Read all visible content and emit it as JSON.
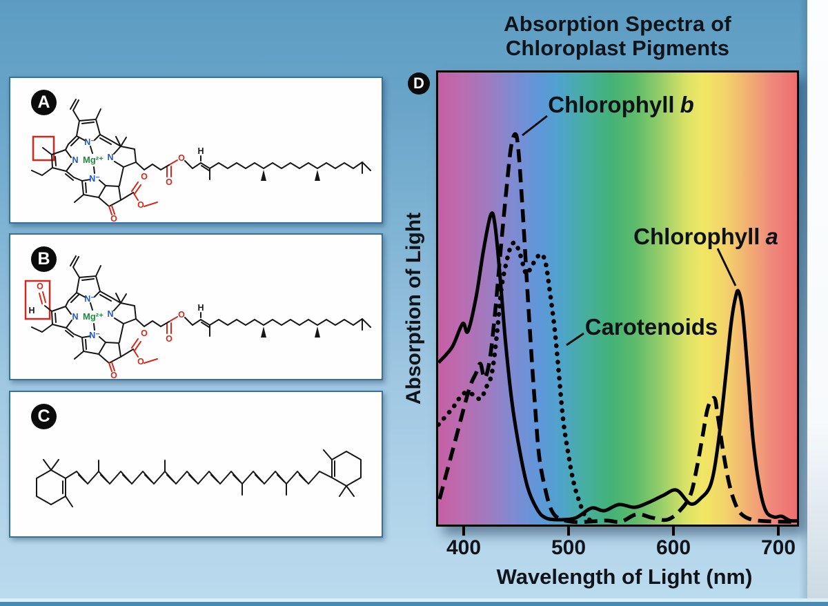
{
  "header": {
    "title_line1": "Absorption Spectra of",
    "title_line2": "Chloroplast Pigments"
  },
  "panels": {
    "a_badge": "A",
    "b_badge": "B",
    "c_badge": "C",
    "d_badge": "D"
  },
  "molecule": {
    "mg": "Mg²⁺",
    "n": "N",
    "n_minus": "N⁻",
    "o": "O",
    "h": "H"
  },
  "chart_data": {
    "type": "line",
    "title": "Absorption Spectra of Chloroplast Pigments",
    "xlabel": "Wavelength of Light (nm)",
    "ylabel": "Absorption of Light",
    "x_ticks": [
      400,
      500,
      600,
      700
    ],
    "xlim": [
      376,
      718
    ],
    "ylim": [
      0,
      1
    ],
    "grid": false,
    "legend_position": "inline-annotations",
    "background": "visible light spectrum gradient",
    "spectrum_stops": [
      [
        0,
        "#C65FA5"
      ],
      [
        7,
        "#B96DB0"
      ],
      [
        14,
        "#9F7BC0"
      ],
      [
        21,
        "#7F8BD2"
      ],
      [
        28,
        "#5F97DA"
      ],
      [
        34,
        "#4FA3CB"
      ],
      [
        41,
        "#46AFA0"
      ],
      [
        48,
        "#43B277"
      ],
      [
        55,
        "#5DBB6B"
      ],
      [
        62,
        "#96CD69"
      ],
      [
        69,
        "#D9E366"
      ],
      [
        74,
        "#F1E664"
      ],
      [
        80,
        "#F3D36A"
      ],
      [
        87,
        "#F2AC74"
      ],
      [
        93,
        "#F0887C"
      ],
      [
        100,
        "#ED6E70"
      ]
    ],
    "series": [
      {
        "name": "Chlorophyll a",
        "label": "Chlorophyll",
        "label_italic": "a",
        "style": "solid",
        "color": "#000000",
        "points": [
          [
            376,
            0.41
          ],
          [
            389,
            0.45
          ],
          [
            399,
            0.51
          ],
          [
            404,
            0.49
          ],
          [
            412,
            0.58
          ],
          [
            419,
            0.7
          ],
          [
            426,
            0.79
          ],
          [
            430,
            0.76
          ],
          [
            435,
            0.62
          ],
          [
            440,
            0.46
          ],
          [
            446,
            0.31
          ],
          [
            453,
            0.19
          ],
          [
            461,
            0.09
          ],
          [
            470,
            0.034
          ],
          [
            478,
            0.012
          ],
          [
            491,
            0.007
          ],
          [
            507,
            0.012
          ],
          [
            522,
            0.037
          ],
          [
            534,
            0.03
          ],
          [
            548,
            0.046
          ],
          [
            563,
            0.039
          ],
          [
            576,
            0.051
          ],
          [
            590,
            0.069
          ],
          [
            603,
            0.083
          ],
          [
            616,
            0.048
          ],
          [
            626,
            0.062
          ],
          [
            636,
            0.101
          ],
          [
            643,
            0.21
          ],
          [
            650,
            0.38
          ],
          [
            655,
            0.51
          ],
          [
            659,
            0.575
          ],
          [
            662,
            0.593
          ],
          [
            666,
            0.54
          ],
          [
            671,
            0.38
          ],
          [
            676,
            0.21
          ],
          [
            682,
            0.092
          ],
          [
            688,
            0.03
          ],
          [
            696,
            0.014
          ],
          [
            703,
            0.016
          ],
          [
            711,
            0.005
          ],
          [
            718,
            0.004
          ]
        ]
      },
      {
        "name": "Chlorophyll b",
        "label": "Chlorophyll",
        "label_italic": "b",
        "style": "dashed",
        "color": "#000000",
        "points": [
          [
            377,
            0.06
          ],
          [
            392,
            0.21
          ],
          [
            405,
            0.34
          ],
          [
            412,
            0.384
          ],
          [
            416,
            0.407
          ],
          [
            420,
            0.37
          ],
          [
            425,
            0.42
          ],
          [
            430,
            0.54
          ],
          [
            436,
            0.72
          ],
          [
            441,
            0.86
          ],
          [
            445,
            0.96
          ],
          [
            449,
            0.996
          ],
          [
            452,
            0.96
          ],
          [
            456,
            0.81
          ],
          [
            460,
            0.63
          ],
          [
            464,
            0.455
          ],
          [
            468,
            0.3
          ],
          [
            472,
            0.17
          ],
          [
            478,
            0.083
          ],
          [
            484,
            0.03
          ],
          [
            492,
            0.009
          ],
          [
            507,
            0.001
          ],
          [
            524,
            0.003
          ],
          [
            537,
            0.005
          ],
          [
            550,
            0.002
          ],
          [
            565,
            0.021
          ],
          [
            580,
            0.012
          ],
          [
            594,
            0.007
          ],
          [
            606,
            0.03
          ],
          [
            616,
            0.069
          ],
          [
            622,
            0.136
          ],
          [
            628,
            0.225
          ],
          [
            633,
            0.296
          ],
          [
            639,
            0.319
          ],
          [
            642,
            0.278
          ],
          [
            647,
            0.189
          ],
          [
            653,
            0.101
          ],
          [
            659,
            0.048
          ],
          [
            665,
            0.021
          ],
          [
            675,
            0.007
          ],
          [
            690,
            0.003
          ],
          [
            705,
            0.002
          ],
          [
            718,
            0.002
          ]
        ]
      },
      {
        "name": "Carotenoids",
        "label": "Carotenoids",
        "label_italic": "",
        "style": "dotted",
        "color": "#000000",
        "points": [
          [
            376,
            0.251
          ],
          [
            389,
            0.292
          ],
          [
            400,
            0.331
          ],
          [
            410,
            0.327
          ],
          [
            416,
            0.317
          ],
          [
            422,
            0.349
          ],
          [
            427,
            0.384
          ],
          [
            432,
            0.49
          ],
          [
            436,
            0.6
          ],
          [
            441,
            0.67
          ],
          [
            445,
            0.708
          ],
          [
            449,
            0.717
          ],
          [
            453,
            0.694
          ],
          [
            457,
            0.658
          ],
          [
            460,
            0.637
          ],
          [
            465,
            0.658
          ],
          [
            470,
            0.68
          ],
          [
            474,
            0.688
          ],
          [
            478,
            0.667
          ],
          [
            482,
            0.596
          ],
          [
            487,
            0.49
          ],
          [
            491,
            0.375
          ],
          [
            495,
            0.26
          ],
          [
            500,
            0.172
          ],
          [
            505,
            0.101
          ],
          [
            511,
            0.048
          ],
          [
            516,
            0.016
          ],
          [
            522,
            0.004
          ]
        ]
      }
    ]
  }
}
